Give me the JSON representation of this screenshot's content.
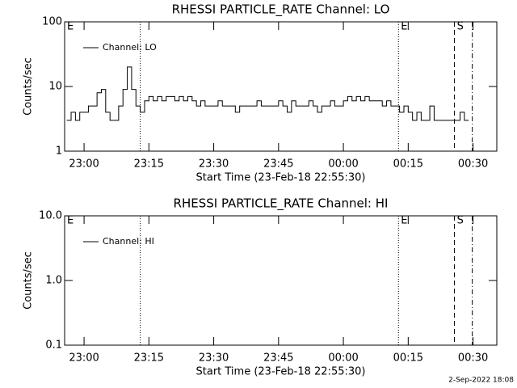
{
  "chart_data": [
    {
      "type": "line",
      "title": "RHESSI PARTICLE_RATE Channel: LO",
      "ylabel": "Counts/sec",
      "xlabel": "Start Time (23-Feb-18 22:55:30)",
      "log_y": true,
      "ylim": [
        1,
        100
      ],
      "yticks": [
        1,
        10,
        100
      ],
      "xlim": [
        "22:55:30",
        "00:35:30"
      ],
      "xticks": [
        "23:00",
        "23:15",
        "23:30",
        "23:45",
        "00:00",
        "00:15",
        "00:30"
      ],
      "legend": "upper left",
      "vlines": [
        {
          "x": "23:13",
          "style": "dotted"
        },
        {
          "x": "00:12:45",
          "style": "dotted"
        },
        {
          "x": "00:25:42",
          "style": "dashed"
        },
        {
          "x": "00:29:50",
          "style": "dashdot"
        }
      ],
      "annotations": [
        {
          "text": "E",
          "x": "22:55:30"
        },
        {
          "text": "E",
          "x": "00:12:45"
        },
        {
          "text": "S",
          "x": "00:25:42"
        }
      ],
      "x": [
        "22:56",
        "22:57",
        "22:58",
        "22:59",
        "23:00",
        "23:01",
        "23:02",
        "23:03",
        "23:04",
        "23:05",
        "23:06",
        "23:07",
        "23:08",
        "23:09",
        "23:10",
        "23:11",
        "23:12",
        "23:13",
        "23:14",
        "23:15",
        "23:16",
        "23:17",
        "23:18",
        "23:19",
        "23:20",
        "23:21",
        "23:22",
        "23:23",
        "23:24",
        "23:25",
        "23:26",
        "23:27",
        "23:28",
        "23:29",
        "23:30",
        "23:31",
        "23:32",
        "23:33",
        "23:34",
        "23:35",
        "23:36",
        "23:37",
        "23:38",
        "23:39",
        "23:40",
        "23:41",
        "23:42",
        "23:43",
        "23:44",
        "23:45",
        "23:46",
        "23:47",
        "23:48",
        "23:49",
        "23:50",
        "23:51",
        "23:52",
        "23:53",
        "23:54",
        "23:55",
        "23:56",
        "23:57",
        "23:58",
        "23:59",
        "00:00",
        "00:01",
        "00:02",
        "00:03",
        "00:04",
        "00:05",
        "00:06",
        "00:07",
        "00:08",
        "00:09",
        "00:10",
        "00:11",
        "00:12",
        "00:13",
        "00:14",
        "00:15",
        "00:16",
        "00:17",
        "00:18",
        "00:19",
        "00:20",
        "00:21",
        "00:22",
        "00:23",
        "00:24",
        "00:25",
        "00:26",
        "00:27",
        "00:28",
        "00:29"
      ],
      "series": [
        {
          "name": "Channel: LO",
          "color": "#000000",
          "values": [
            3,
            4,
            3,
            4,
            4,
            5,
            5,
            8,
            9,
            4,
            3,
            3,
            5,
            9,
            20,
            9,
            5,
            4,
            6,
            7,
            6,
            7,
            6,
            7,
            7,
            6,
            7,
            6,
            7,
            6,
            5,
            6,
            5,
            5,
            5,
            6,
            5,
            5,
            5,
            4,
            5,
            5,
            5,
            5,
            6,
            5,
            5,
            5,
            5,
            6,
            5,
            4,
            6,
            5,
            5,
            5,
            6,
            5,
            4,
            5,
            5,
            6,
            5,
            5,
            6,
            7,
            6,
            7,
            6,
            7,
            6,
            6,
            6,
            5,
            6,
            5,
            5,
            4,
            5,
            4,
            3,
            4,
            3,
            3,
            5,
            3,
            3,
            3,
            3,
            3,
            3,
            4,
            3,
            3
          ]
        }
      ]
    },
    {
      "type": "line",
      "title": "RHESSI PARTICLE_RATE Channel: HI",
      "ylabel": "Counts/sec",
      "xlabel": "Start Time (23-Feb-18 22:55:30)",
      "log_y": true,
      "ylim": [
        0.1,
        10
      ],
      "yticks": [
        0.1,
        {
          "value": 1,
          "label": "1.0"
        },
        {
          "value": 10,
          "label": "10.0"
        }
      ],
      "xlim": [
        "22:55:30",
        "00:35:30"
      ],
      "xticks": [
        "23:00",
        "23:15",
        "23:30",
        "23:45",
        "00:00",
        "00:15",
        "00:30"
      ],
      "legend": "upper left",
      "vlines": [
        {
          "x": "23:13",
          "style": "dotted"
        },
        {
          "x": "00:12:45",
          "style": "dotted"
        },
        {
          "x": "00:25:42",
          "style": "dashed"
        },
        {
          "x": "00:29:50",
          "style": "dashdot"
        }
      ],
      "annotations": [
        {
          "text": "E",
          "x": "22:55:30"
        },
        {
          "text": "E",
          "x": "00:12:45"
        },
        {
          "text": "S",
          "x": "00:25:42"
        }
      ],
      "x": [],
      "series": [
        {
          "name": "Channel: HI",
          "color": "#000000",
          "values": []
        }
      ]
    }
  ],
  "footer": "2-Sep-2022 18:08"
}
